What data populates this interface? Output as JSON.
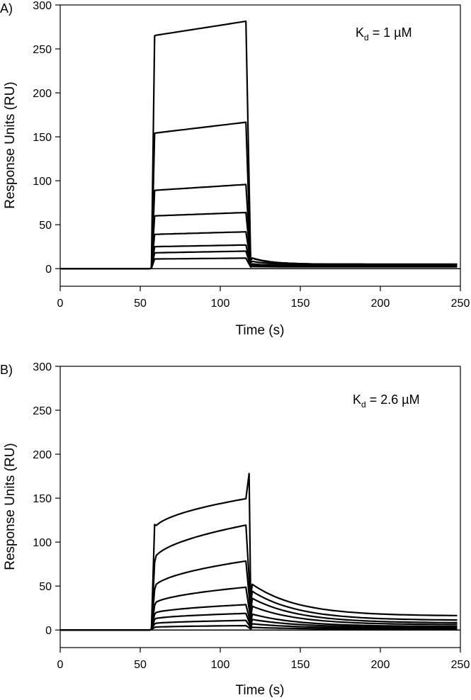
{
  "chart_data": [
    {
      "type": "line",
      "panel_label": "A)",
      "annotation": {
        "symbol": "K",
        "subscript": "d",
        "text": " = 1 µM"
      },
      "xlabel": "Time (s)",
      "ylabel": "Response Units (RU)",
      "xlim": [
        0,
        250
      ],
      "ylim": [
        -20,
        300
      ],
      "x_ticks": [
        0,
        50,
        100,
        150,
        200,
        250
      ],
      "y_ticks": [
        0,
        50,
        100,
        150,
        200,
        250,
        300
      ],
      "injection_start": 58,
      "injection_end": 118,
      "series": [
        {
          "plateau_start": 265,
          "plateau_end": 282,
          "dissoc_residual": 5,
          "overshoot": 0
        },
        {
          "plateau_start": 154,
          "plateau_end": 167,
          "dissoc_residual": 5,
          "overshoot": 0
        },
        {
          "plateau_start": 89,
          "plateau_end": 96,
          "dissoc_residual": 5,
          "overshoot": 0
        },
        {
          "plateau_start": 60,
          "plateau_end": 64,
          "dissoc_residual": 4,
          "overshoot": 0
        },
        {
          "plateau_start": 39,
          "plateau_end": 42,
          "dissoc_residual": 4,
          "overshoot": 0
        },
        {
          "plateau_start": 25,
          "plateau_end": 27,
          "dissoc_residual": 3,
          "overshoot": 0
        },
        {
          "plateau_start": 18,
          "plateau_end": 20,
          "dissoc_residual": 3,
          "overshoot": 0
        },
        {
          "plateau_start": 11,
          "plateau_end": 12,
          "dissoc_residual": 2,
          "overshoot": 0
        }
      ]
    },
    {
      "type": "line",
      "panel_label": "B)",
      "annotation": {
        "symbol": "K",
        "subscript": "d",
        "text": " = 2.6 µM"
      },
      "xlabel": "Time (s)",
      "ylabel": "Response Units (RU)",
      "xlim": [
        0,
        250
      ],
      "ylim": [
        -20,
        300
      ],
      "x_ticks": [
        0,
        50,
        100,
        150,
        200,
        250
      ],
      "y_ticks": [
        0,
        50,
        100,
        150,
        200,
        250,
        300
      ],
      "injection_start": 58,
      "injection_end": 118,
      "series": [
        {
          "plateau_start": 112,
          "plateau_end": 150,
          "dissoc_residual": 16,
          "overshoot": 178,
          "dissoc_peak": 52
        },
        {
          "plateau_start": 77,
          "plateau_end": 120,
          "dissoc_residual": 11,
          "overshoot": 0,
          "dissoc_peak": 44
        },
        {
          "plateau_start": 46,
          "plateau_end": 79,
          "dissoc_residual": 8,
          "overshoot": 0,
          "dissoc_peak": 36
        },
        {
          "plateau_start": 28,
          "plateau_end": 49,
          "dissoc_residual": 6,
          "overshoot": 0,
          "dissoc_peak": 27
        },
        {
          "plateau_start": 18,
          "plateau_end": 29,
          "dissoc_residual": 4,
          "overshoot": 0,
          "dissoc_peak": 18
        },
        {
          "plateau_start": 12,
          "plateau_end": 19,
          "dissoc_residual": 3,
          "overshoot": 0,
          "dissoc_peak": 12
        },
        {
          "plateau_start": 7,
          "plateau_end": 11,
          "dissoc_residual": 2,
          "overshoot": 0,
          "dissoc_peak": 7
        },
        {
          "plateau_start": 3,
          "plateau_end": 5,
          "dissoc_residual": 1,
          "overshoot": 0,
          "dissoc_peak": 3
        }
      ]
    }
  ]
}
